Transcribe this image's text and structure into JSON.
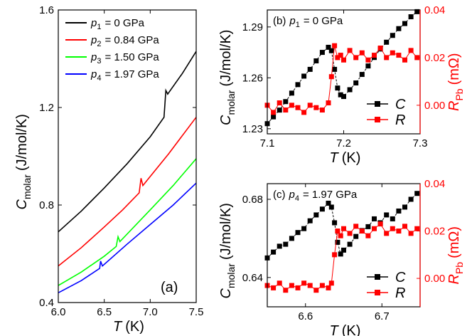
{
  "chart_data": [
    {
      "type": "line",
      "xlabel": {
        "symbol": "T",
        "text": "(K)"
      },
      "ylabel": {
        "symbol": "C",
        "subscript": "molar",
        "text": "(J/mol/K)"
      },
      "annotation": {
        "prefix": "(a)"
      },
      "xlim": [
        6.0,
        7.5
      ],
      "xticks": [
        {
          "value": 6,
          "label": "6.0"
        },
        6.5,
        {
          "value": 7,
          "label": "7.0"
        },
        7.5
      ],
      "ylim": [
        0.4,
        1.6
      ],
      "yticks": [
        0.4,
        0.8,
        1.2,
        1.6
      ],
      "legend": "upper left",
      "series": [
        {
          "name": {
            "symbol": "p",
            "subscript": "1",
            "text": "= 0 GPa"
          },
          "color": "#000000",
          "x": [
            6.0,
            6.25,
            6.5,
            6.75,
            7.0,
            7.15,
            7.17,
            7.19,
            7.35,
            7.5
          ],
          "values": [
            0.69,
            0.775,
            0.87,
            0.97,
            1.08,
            1.16,
            1.27,
            1.255,
            1.34,
            1.43
          ]
        },
        {
          "name": {
            "symbol": "p",
            "subscript": "2",
            "text": "= 0.84 GPa"
          },
          "color": "#ff0000",
          "x": [
            6.0,
            6.25,
            6.5,
            6.7,
            6.88,
            6.9,
            6.92,
            7.2,
            7.5
          ],
          "values": [
            0.55,
            0.625,
            0.71,
            0.78,
            0.85,
            0.91,
            0.88,
            1.01,
            1.16
          ]
        },
        {
          "name": {
            "symbol": "p",
            "subscript": "3",
            "text": "= 1.50 GPa"
          },
          "color": "#00ff00",
          "x": [
            6.0,
            6.25,
            6.5,
            6.63,
            6.65,
            6.67,
            7.0,
            7.25,
            7.5
          ],
          "values": [
            0.47,
            0.525,
            0.59,
            0.63,
            0.67,
            0.65,
            0.78,
            0.88,
            0.99
          ]
        },
        {
          "name": {
            "symbol": "p",
            "subscript": "4",
            "text": "= 1.97 GPa"
          },
          "color": "#0000ff",
          "x": [
            6.0,
            6.25,
            6.45,
            6.46,
            6.48,
            6.75,
            7.0,
            7.25,
            7.5
          ],
          "values": [
            0.44,
            0.49,
            0.54,
            0.57,
            0.55,
            0.64,
            0.72,
            0.8,
            0.89
          ]
        }
      ]
    },
    {
      "type": "line",
      "marker": "square",
      "xlabel": {
        "symbol": "T",
        "text": "(K)"
      },
      "ylabel": {
        "symbol": "C",
        "subscript": "molar",
        "text": "(J/mol/K)"
      },
      "y2label": {
        "symbol": "R",
        "subscript": "Pb",
        "text": "(mΩ)"
      },
      "annotation": {
        "prefix": "(b)",
        "symbol": "p",
        "subscript": "1",
        "text": "= 0 GPa"
      },
      "xlim": [
        7.1,
        7.3
      ],
      "xticks": [
        7.1,
        7.2,
        7.3
      ],
      "ylim": [
        1.227,
        1.3
      ],
      "yticks": [
        1.23,
        1.26,
        1.29
      ],
      "y2lim": [
        -0.012,
        0.04
      ],
      "y2ticks": [
        {
          "value": 0,
          "label": "0.00"
        },
        0.02,
        0.04
      ],
      "legend": "lower right",
      "x": [
        7.1,
        7.108,
        7.116,
        7.124,
        7.132,
        7.14,
        7.148,
        7.156,
        7.164,
        7.172,
        7.18,
        7.184,
        7.188,
        7.192,
        7.196,
        7.2,
        7.208,
        7.216,
        7.224,
        7.232,
        7.24,
        7.248,
        7.256,
        7.264,
        7.272,
        7.28,
        7.288,
        7.296
      ],
      "series": [
        {
          "name": {
            "symbol": "C"
          },
          "color": "#000000",
          "values": [
            1.233,
            1.237,
            1.241,
            1.246,
            1.251,
            1.256,
            1.261,
            1.265,
            1.27,
            1.275,
            1.278,
            1.276,
            1.265,
            1.254,
            1.25,
            1.249,
            1.253,
            1.257,
            1.262,
            1.267,
            1.272,
            1.277,
            1.281,
            1.285,
            1.289,
            1.292,
            1.296,
            1.299
          ]
        },
        {
          "name": {
            "symbol": "R"
          },
          "color": "#ff0000",
          "axis": "y2",
          "values": [
            0,
            -0.003,
            0.001,
            -0.002,
            0,
            -0.001,
            -0.003,
            0,
            -0.001,
            -0.002,
            0.001,
            0.012,
            0.025,
            0.02,
            0.021,
            0.019,
            0.023,
            0.02,
            0.022,
            0.019,
            0.021,
            0.024,
            0.02,
            0.022,
            0.021,
            0.019,
            0.023,
            0.02
          ]
        }
      ]
    },
    {
      "type": "line",
      "marker": "square",
      "xlabel": {
        "symbol": "T",
        "text": "(K)"
      },
      "ylabel": {
        "symbol": "C",
        "subscript": "molar",
        "text": "(J/mol/K)"
      },
      "y2label": {
        "symbol": "R",
        "subscript": "Pb",
        "text": "(mΩ)"
      },
      "annotation": {
        "prefix": "(c)",
        "symbol": "p",
        "subscript": "4",
        "text": "= 1.97 GPa"
      },
      "xlim": [
        6.55,
        6.75
      ],
      "xticks": [
        6.6,
        6.7
      ],
      "ylim": [
        0.625,
        0.688
      ],
      "yticks": [
        0.64,
        0.68
      ],
      "y2lim": [
        -0.012,
        0.04
      ],
      "y2ticks": [
        {
          "value": 0,
          "label": "0.00"
        },
        0.02,
        0.04
      ],
      "legend": "lower right",
      "x": [
        6.55,
        6.558,
        6.566,
        6.574,
        6.582,
        6.59,
        6.598,
        6.606,
        6.614,
        6.622,
        6.63,
        6.634,
        6.638,
        6.642,
        6.646,
        6.65,
        6.658,
        6.666,
        6.674,
        6.682,
        6.69,
        6.698,
        6.706,
        6.714,
        6.722,
        6.73,
        6.738,
        6.746
      ],
      "series": [
        {
          "name": {
            "symbol": "C"
          },
          "color": "#000000",
          "values": [
            0.65,
            0.653,
            0.656,
            0.657,
            0.66,
            0.663,
            0.665,
            0.669,
            0.672,
            0.675,
            0.678,
            0.676,
            0.668,
            0.658,
            0.652,
            0.654,
            0.657,
            0.661,
            0.664,
            0.666,
            0.67,
            0.668,
            0.672,
            0.67,
            0.674,
            0.676,
            0.68,
            0.683
          ]
        },
        {
          "name": {
            "symbol": "R"
          },
          "color": "#ff0000",
          "axis": "y2",
          "values": [
            -0.003,
            -0.004,
            -0.002,
            -0.005,
            -0.003,
            -0.004,
            -0.002,
            -0.003,
            -0.005,
            -0.003,
            -0.004,
            -0.002,
            0.01,
            0.02,
            0.018,
            0.021,
            0.019,
            0.022,
            0.02,
            0.018,
            0.021,
            0.023,
            0.019,
            0.021,
            0.02,
            0.022,
            0.019,
            0.021
          ]
        }
      ]
    }
  ]
}
